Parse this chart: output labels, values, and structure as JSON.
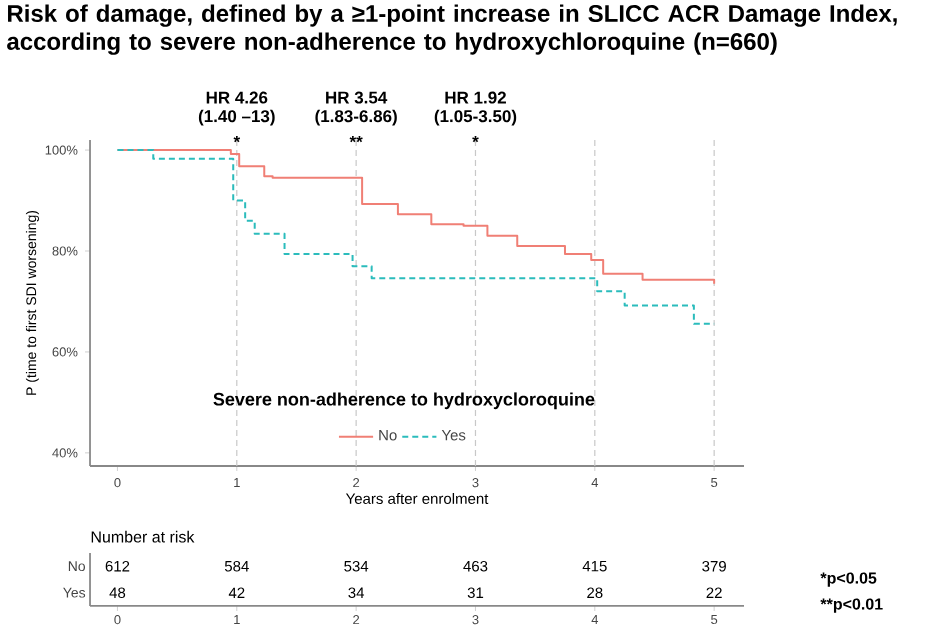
{
  "chart_data": [
    {
      "type": "step",
      "title": "Risk of damage, defined by a ≥1-point increase in SLICC ACR Damage Index, according to severe non-adherence to hydroxychloroquine (n=660)",
      "xlabel": "Years after enrolment",
      "ylabel": "P (time to first SDI worsening)",
      "legend_title": "Severe non-adherence to hydroxycloroquine",
      "legend": "bottom",
      "grid": false,
      "xlim": [
        -0.23,
        5.25
      ],
      "xticks": [
        0,
        1,
        2,
        3,
        4,
        5
      ],
      "ylim": [
        37.4,
        102
      ],
      "yticks": [
        {
          "value": 40,
          "label": "40%"
        },
        {
          "value": 60,
          "label": "60%"
        },
        {
          "value": 80,
          "label": "80%"
        },
        {
          "value": 100,
          "label": "100%"
        }
      ],
      "series": [
        {
          "name": "No",
          "color": "#f07f75",
          "line_style": "solid",
          "x": [
            0,
            0.95,
            1.02,
            1.23,
            1.3,
            1.9,
            2.05,
            2.35,
            2.63,
            2.9,
            3.1,
            3.35,
            3.75,
            3.97,
            4.07,
            4.4,
            5.0
          ],
          "values": [
            100,
            99.2,
            96.8,
            94.8,
            94.5,
            94.5,
            89.3,
            87.3,
            85.3,
            85,
            83,
            81,
            79.4,
            78.2,
            75.5,
            74.3,
            73.5
          ]
        },
        {
          "name": "Yes",
          "color": "#2bbcbc",
          "line_style": "dashed",
          "x": [
            0,
            0.3,
            0.85,
            0.97,
            1.07,
            1.15,
            1.4,
            1.97,
            2.13,
            4.02,
            4.25,
            4.83,
            5.0
          ],
          "values": [
            100,
            98.3,
            98.3,
            90,
            86,
            83.4,
            79.4,
            77,
            74.6,
            72,
            69.2,
            65.6,
            65.6
          ]
        }
      ],
      "ref_lines": [
        {
          "axis": "x",
          "value": 1,
          "color": "#c8c8c8",
          "line_style": "dashed"
        },
        {
          "axis": "x",
          "value": 2,
          "color": "#c8c8c8",
          "line_style": "dashed"
        },
        {
          "axis": "x",
          "value": 3,
          "color": "#c8c8c8",
          "line_style": "dashed"
        },
        {
          "axis": "x",
          "value": 4,
          "color": "#c8c8c8",
          "line_style": "dashed"
        },
        {
          "axis": "x",
          "value": 5,
          "color": "#c8c8c8",
          "line_style": "dashed"
        }
      ],
      "annotations": [
        "HR 4.26",
        "(1.40 –13)",
        "*",
        "HR 3.54",
        "(1.83-6.86)",
        "**",
        "HR 1.92",
        "(1.05-3.50)",
        "*"
      ]
    },
    {
      "type": "heatmap",
      "title": "Number at risk",
      "data_labels": true,
      "categories": [
        "0",
        "1",
        "2",
        "3",
        "4",
        "5"
      ],
      "y_categories": [
        "No",
        "Yes"
      ],
      "cells": [
        [
          612,
          584,
          534,
          463,
          415,
          379
        ],
        [
          48,
          42,
          34,
          31,
          28,
          22
        ]
      ],
      "annotations": [
        "*p<0.05",
        "**p<0.01"
      ]
    }
  ]
}
